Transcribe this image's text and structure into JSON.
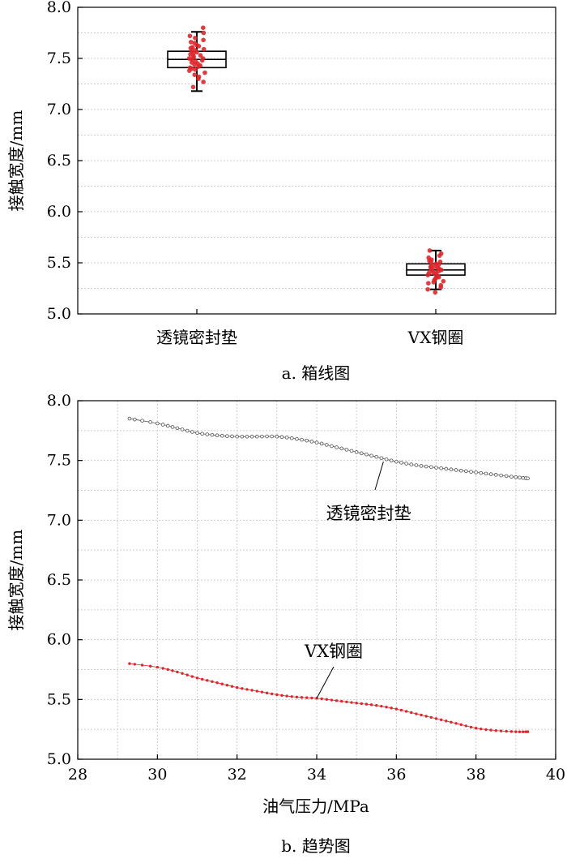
{
  "chart_data": [
    {
      "type": "box",
      "ylabel": "接触宽度/mm",
      "xlabel": "",
      "ylim": [
        5.0,
        8.0
      ],
      "yticks": [
        "5.0",
        "5.5",
        "6.0",
        "6.5",
        "7.0",
        "7.5",
        "8.0"
      ],
      "grid": true,
      "caption": "a. 箱线图",
      "categories": [
        "透镜密封垫",
        "VX钢圈"
      ],
      "boxes": [
        {
          "min": 7.18,
          "q1": 7.41,
          "median": 7.49,
          "q3": 7.57,
          "max": 7.76
        },
        {
          "min": 5.24,
          "q1": 5.38,
          "median": 5.43,
          "q3": 5.49,
          "max": 5.62
        }
      ],
      "points": [
        [
          7.8,
          7.75,
          7.72,
          7.7,
          7.68,
          7.66,
          7.65,
          7.63,
          7.62,
          7.61,
          7.6,
          7.59,
          7.58,
          7.57,
          7.56,
          7.55,
          7.54,
          7.53,
          7.52,
          7.51,
          7.5,
          7.5,
          7.49,
          7.48,
          7.47,
          7.46,
          7.45,
          7.44,
          7.43,
          7.42,
          7.41,
          7.4,
          7.39,
          7.38,
          7.36,
          7.34,
          7.32,
          7.3,
          7.27,
          7.22
        ],
        [
          5.62,
          5.59,
          5.57,
          5.55,
          5.53,
          5.52,
          5.51,
          5.5,
          5.49,
          5.48,
          5.47,
          5.46,
          5.46,
          5.45,
          5.44,
          5.44,
          5.43,
          5.43,
          5.42,
          5.41,
          5.4,
          5.4,
          5.39,
          5.38,
          5.37,
          5.36,
          5.35,
          5.34,
          5.33,
          5.32,
          5.31,
          5.3,
          5.28,
          5.26,
          5.24,
          5.21
        ]
      ],
      "point_color": "#e0262a",
      "box_color": "#000000"
    },
    {
      "type": "line",
      "xlabel": "油气压力/MPa",
      "ylabel": "接触宽度/mm",
      "xlim": [
        28,
        40
      ],
      "ylim": [
        5.0,
        8.0
      ],
      "xticks": [
        "28",
        "30",
        "32",
        "34",
        "36",
        "38",
        "40"
      ],
      "yticks": [
        "5.0",
        "5.5",
        "6.0",
        "6.5",
        "7.0",
        "7.5",
        "8.0"
      ],
      "grid": true,
      "caption": "b. 趋势图",
      "series": [
        {
          "name": "透镜密封垫",
          "color": "#555555",
          "marker": "open-circle",
          "x": [
            29.3,
            30.0,
            30.5,
            31.0,
            31.5,
            32.0,
            32.5,
            33.0,
            33.5,
            34.0,
            34.5,
            35.0,
            35.5,
            36.0,
            36.5,
            37.0,
            37.5,
            38.0,
            38.5,
            39.0,
            39.3
          ],
          "y": [
            7.85,
            7.81,
            7.77,
            7.73,
            7.71,
            7.7,
            7.7,
            7.7,
            7.68,
            7.65,
            7.61,
            7.57,
            7.53,
            7.49,
            7.46,
            7.44,
            7.42,
            7.4,
            7.38,
            7.36,
            7.35
          ]
        },
        {
          "name": "VX钢圈",
          "color": "#e0262a",
          "marker": "filled-circle",
          "x": [
            29.3,
            30.0,
            30.5,
            31.0,
            31.5,
            32.0,
            32.5,
            33.0,
            33.5,
            34.0,
            34.5,
            35.0,
            35.5,
            36.0,
            36.5,
            37.0,
            37.5,
            38.0,
            38.5,
            39.0,
            39.3
          ],
          "y": [
            5.8,
            5.77,
            5.73,
            5.68,
            5.64,
            5.6,
            5.57,
            5.54,
            5.52,
            5.51,
            5.49,
            5.47,
            5.45,
            5.42,
            5.38,
            5.34,
            5.3,
            5.26,
            5.24,
            5.23,
            5.23
          ]
        }
      ],
      "annotations": [
        {
          "text": "透镜密封垫",
          "series": 0,
          "at_x": 36.0
        },
        {
          "text": "VX钢圈",
          "series": 1,
          "at_x": 34.0
        }
      ]
    }
  ]
}
